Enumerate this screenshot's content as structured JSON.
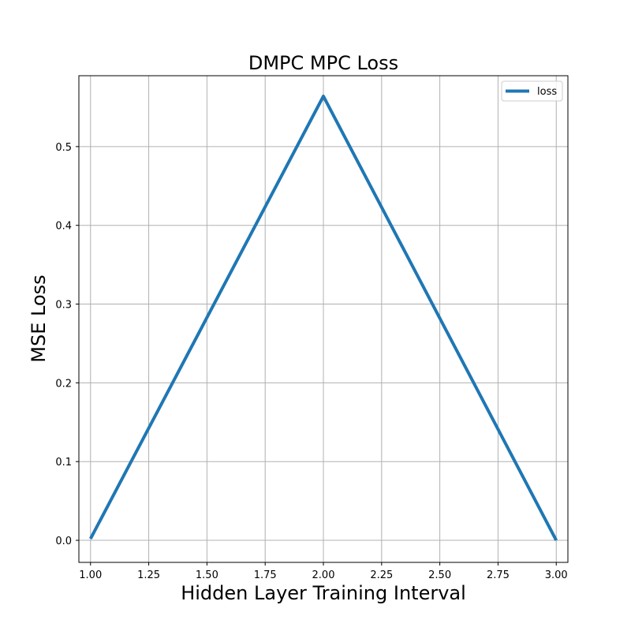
{
  "chart_data": {
    "type": "line",
    "title": "DMPC MPC Loss",
    "xlabel": "Hidden Layer Training Interval",
    "ylabel": "MSE Loss",
    "xlim": [
      0.95,
      3.05
    ],
    "ylim": [
      -0.028,
      0.59
    ],
    "x_ticks": [
      1.0,
      1.25,
      1.5,
      1.75,
      2.0,
      2.25,
      2.5,
      2.75,
      3.0
    ],
    "x_tick_labels": [
      "1.00",
      "1.25",
      "1.50",
      "1.75",
      "2.00",
      "2.25",
      "2.50",
      "2.75",
      "3.00"
    ],
    "y_ticks": [
      0.0,
      0.1,
      0.2,
      0.3,
      0.4,
      0.5
    ],
    "y_tick_labels": [
      "0.0",
      "0.1",
      "0.2",
      "0.3",
      "0.4",
      "0.5"
    ],
    "grid": true,
    "legend_position": "top-right",
    "series": [
      {
        "name": "loss",
        "color": "#1f77b4",
        "x": [
          1.0,
          2.0,
          3.0
        ],
        "y": [
          0.002,
          0.564,
          0.0
        ]
      }
    ]
  }
}
